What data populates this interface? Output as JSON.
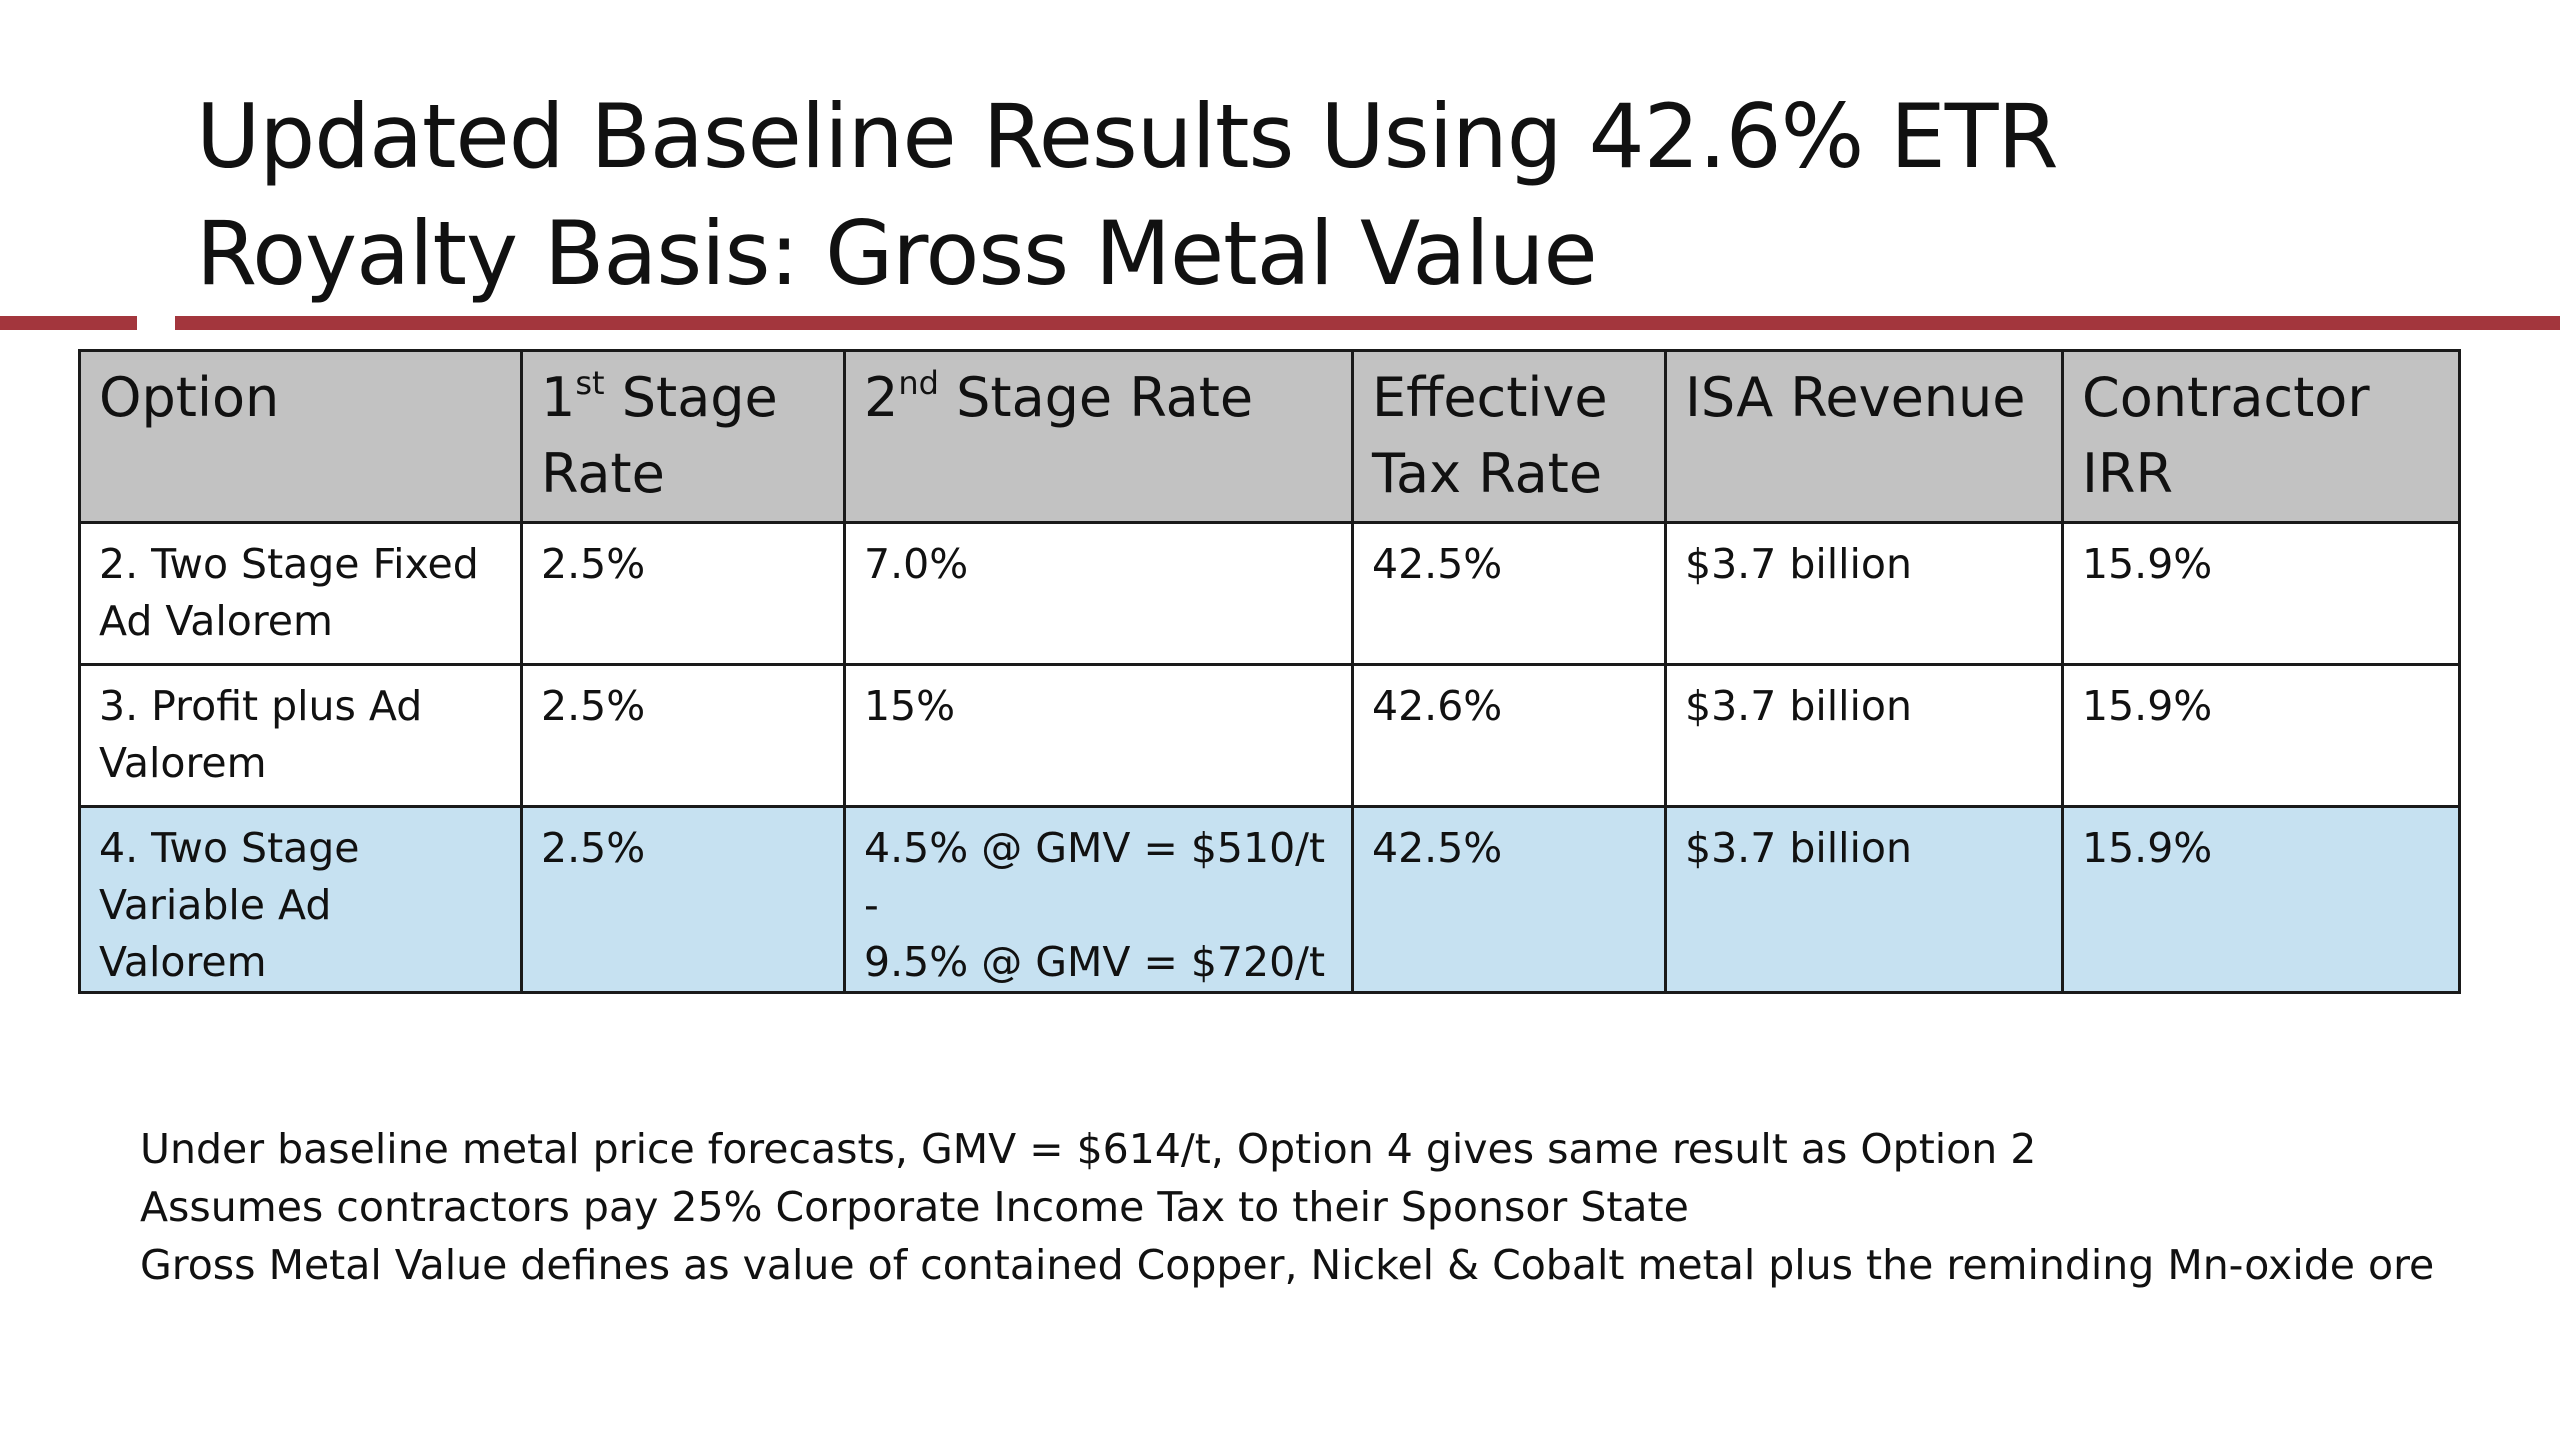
{
  "slide": {
    "title_line1": "Updated Baseline Results Using 42.6% ETR",
    "title_line2": "Royalty Basis: Gross Metal Value",
    "accent_color": "#a3363d"
  },
  "table": {
    "header_bg": "#c2c2c2",
    "highlight_bg": "#c6e1f1",
    "headers": {
      "option": "Option",
      "first_stage_num": "1",
      "first_stage_sup": "st",
      "first_stage_rest": " Stage Rate",
      "second_stage_num": "2",
      "second_stage_sup": "nd",
      "second_stage_rest": " Stage Rate",
      "effective_tax_rate": "Effective Tax Rate",
      "isa_revenue": "ISA Revenue",
      "contractor_irr": "Contractor IRR"
    },
    "rows": [
      {
        "option": "2. Two Stage Fixed Ad Valorem",
        "first_stage_rate": "2.5%",
        "second_stage_rate": "7.0%",
        "effective_tax_rate": "42.5%",
        "isa_revenue": "$3.7 billion",
        "contractor_irr": "15.9%"
      },
      {
        "option": "3. Profit plus Ad Valorem",
        "first_stage_rate": "2.5%",
        "second_stage_rate": "15%",
        "effective_tax_rate": "42.6%",
        "isa_revenue": "$3.7 billion",
        "contractor_irr": "15.9%"
      },
      {
        "option": "4. Two Stage Variable Ad Valorem",
        "first_stage_rate": "2.5%",
        "second_stage_rate_line1": "4.5% @ GMV = $510/t -",
        "second_stage_rate_line2": "9.5% @ GMV = $720/t",
        "effective_tax_rate": "42.5%",
        "isa_revenue": "$3.7 billion",
        "contractor_irr": "15.9%"
      }
    ]
  },
  "notes": [
    "Under baseline metal price forecasts, GMV = $614/t, Option 4 gives same result as Option 2",
    "Assumes contractors pay 25% Corporate Income Tax to their Sponsor State",
    "Gross Metal Value defines as value of contained Copper, Nickel & Cobalt metal plus the reminding Mn-oxide ore"
  ]
}
